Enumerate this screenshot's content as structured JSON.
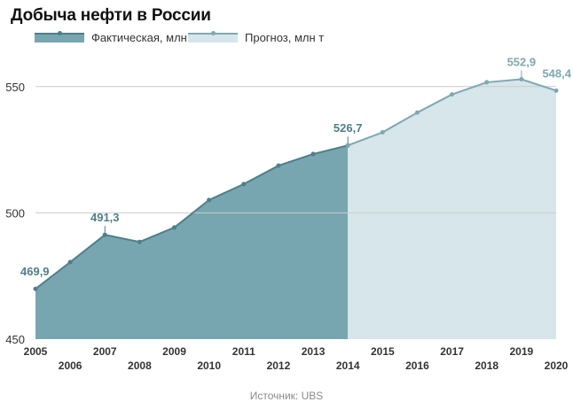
{
  "title": "Добыча нефти в России",
  "legend": {
    "actual": "Фактическая, млн т",
    "forecast": "Прогноз, млн т"
  },
  "source": "Источник: UBS",
  "colors": {
    "actual_fill": "#77a6b0",
    "actual_line": "#4e7e8a",
    "forecast_fill": "#d6e6ea",
    "forecast_line": "#7fa8b1",
    "grid": "#cccccc",
    "axis_text": "#333333",
    "label_actual": "#4e7e8a",
    "label_forecast": "#7fa8b1"
  },
  "chart_data": {
    "type": "area",
    "title": "Добыча нефти в России",
    "xlabel": "",
    "ylabel": "",
    "ylim": [
      450,
      565
    ],
    "yticks": [
      450,
      500,
      550
    ],
    "grid": true,
    "legend_position": "top-left",
    "x": [
      2005,
      2006,
      2007,
      2008,
      2009,
      2010,
      2011,
      2012,
      2013,
      2014,
      2015,
      2016,
      2017,
      2018,
      2019,
      2020
    ],
    "series": [
      {
        "name": "Фактическая, млн т",
        "x": [
          2005,
          2006,
          2007,
          2008,
          2009,
          2010,
          2011,
          2012,
          2013,
          2014
        ],
        "values": [
          469.9,
          480.5,
          491.3,
          488.5,
          494.2,
          505.1,
          511.4,
          518.7,
          523.3,
          526.7
        ]
      },
      {
        "name": "Прогноз, млн т",
        "x": [
          2014,
          2015,
          2016,
          2017,
          2018,
          2019,
          2020
        ],
        "values": [
          526.7,
          531.9,
          539.7,
          546.9,
          551.7,
          552.9,
          548.4
        ]
      }
    ],
    "annotations": [
      {
        "x": 2005,
        "y": 469.9,
        "text": "469,9",
        "series": "actual"
      },
      {
        "x": 2007,
        "y": 491.3,
        "text": "491,3",
        "series": "actual"
      },
      {
        "x": 2014,
        "y": 526.7,
        "text": "526,7",
        "series": "actual"
      },
      {
        "x": 2019,
        "y": 552.9,
        "text": "552,9",
        "series": "forecast"
      },
      {
        "x": 2020,
        "y": 548.4,
        "text": "548,4",
        "series": "forecast"
      }
    ]
  }
}
